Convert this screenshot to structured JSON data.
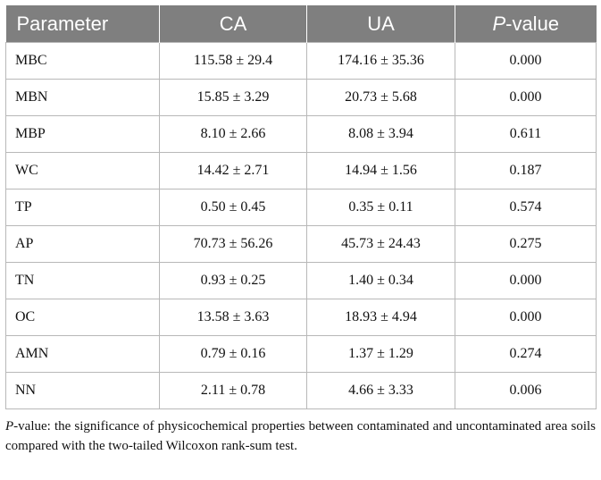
{
  "table": {
    "headers": {
      "parameter": "Parameter",
      "ca": "CA",
      "ua": "UA",
      "p_prefix": "P",
      "p_suffix": "-value"
    },
    "rows": [
      {
        "parameter": "MBC",
        "ca": "115.58 ± 29.4",
        "ua": "174.16 ± 35.36",
        "p": "0.000"
      },
      {
        "parameter": "MBN",
        "ca": "15.85 ± 3.29",
        "ua": "20.73 ± 5.68",
        "p": "0.000"
      },
      {
        "parameter": "MBP",
        "ca": "8.10 ± 2.66",
        "ua": "8.08 ± 3.94",
        "p": "0.611"
      },
      {
        "parameter": "WC",
        "ca": "14.42 ± 2.71",
        "ua": "14.94 ± 1.56",
        "p": "0.187"
      },
      {
        "parameter": "TP",
        "ca": "0.50 ± 0.45",
        "ua": "0.35 ± 0.11",
        "p": "0.574"
      },
      {
        "parameter": "AP",
        "ca": "70.73 ± 56.26",
        "ua": "45.73 ± 24.43",
        "p": "0.275"
      },
      {
        "parameter": "TN",
        "ca": "0.93 ± 0.25",
        "ua": "1.40 ± 0.34",
        "p": "0.000"
      },
      {
        "parameter": "OC",
        "ca": "13.58 ± 3.63",
        "ua": "18.93 ± 4.94",
        "p": "0.000"
      },
      {
        "parameter": "AMN",
        "ca": "0.79 ± 0.16",
        "ua": "1.37 ± 1.29",
        "p": "0.274"
      },
      {
        "parameter": "NN",
        "ca": "2.11 ± 0.78",
        "ua": "4.66 ± 3.33",
        "p": "0.006"
      }
    ]
  },
  "footnote": {
    "term": "P",
    "text": "-value: the significance of physicochemical properties between contaminated and uncontaminated area soils compared with the two-tailed Wilcoxon rank-sum test."
  }
}
